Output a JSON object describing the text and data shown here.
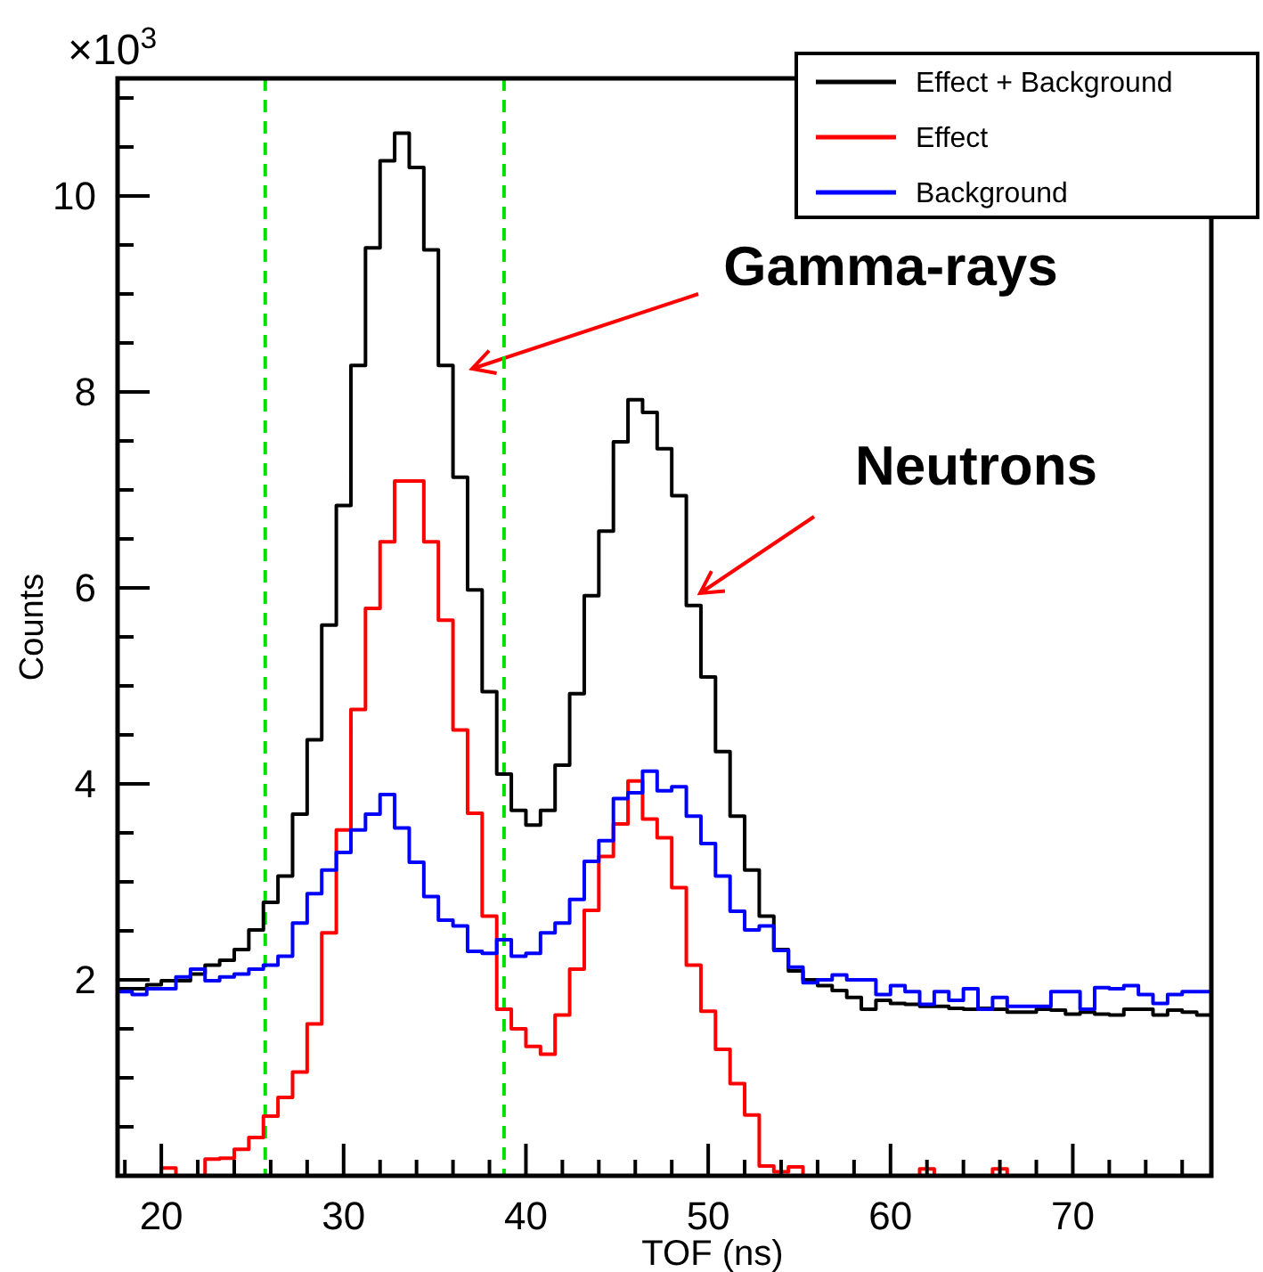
{
  "chart_data": {
    "type": "histogram",
    "xlabel": "TOF (ns)",
    "ylabel": "Counts",
    "annotations": [
      "×10$^{3}$",
      "Gamma-rays",
      "Neutrons"
    ],
    "bins": [
      17.6,
      18.4,
      19.2,
      20,
      20.8,
      21.6,
      22.4,
      23.2,
      24,
      24.8,
      25.6,
      26.4,
      27.2,
      28,
      28.8,
      29.6,
      30.4,
      31.2,
      32,
      32.8,
      33.6,
      34.4,
      35.2,
      36,
      36.8,
      37.6,
      38.4,
      39.2,
      40,
      40.8,
      41.6,
      42.4,
      43.2,
      44,
      44.8,
      45.6,
      46.4,
      47.2,
      48,
      48.8,
      49.6,
      50.4,
      51.2,
      52,
      52.8,
      53.6,
      54.4,
      55.2,
      56,
      56.8,
      57.6,
      58.4,
      59.2,
      60,
      60.8,
      61.6,
      62.4,
      63.2,
      64,
      64.8,
      65.6,
      66.4,
      67.2,
      68,
      68.8,
      69.6,
      70.4,
      71.2,
      72,
      72.8,
      73.6,
      74.4,
      75.2,
      76,
      76.8,
      77.6
    ],
    "series": [
      {
        "name": "Effect + Background",
        "color": "#000000",
        "values": [
          1.91,
          1.91,
          1.95,
          1.99,
          1.99,
          2.06,
          2.15,
          2.2,
          2.31,
          2.51,
          2.79,
          3.06,
          3.69,
          4.45,
          5.62,
          6.84,
          8.27,
          9.47,
          10.36,
          10.64,
          10.29,
          9.45,
          8.27,
          7.13,
          5.98,
          4.94,
          4.1,
          3.73,
          3.58,
          3.73,
          4.19,
          4.92,
          5.92,
          6.58,
          7.49,
          7.92,
          7.79,
          7.42,
          6.94,
          5.82,
          5.09,
          4.33,
          3.67,
          3.12,
          2.65,
          2.31,
          2.09,
          2.0,
          1.94,
          1.89,
          1.82,
          1.7,
          1.79,
          1.76,
          1.75,
          1.73,
          1.73,
          1.71,
          1.7,
          1.71,
          1.7,
          1.67,
          1.67,
          1.7,
          1.69,
          1.65,
          1.67,
          1.65,
          1.64,
          1.7,
          1.7,
          1.64,
          1.69,
          1.67,
          1.64
        ]
      },
      {
        "name": "Effect",
        "color": "#ff0000",
        "values": [
          0,
          0,
          0,
          0.08,
          0,
          0,
          0.17,
          0.18,
          0.27,
          0.39,
          0.61,
          0.8,
          1.06,
          1.55,
          2.48,
          3.53,
          4.76,
          5.79,
          6.47,
          7.09,
          7.09,
          6.47,
          5.67,
          4.55,
          3.7,
          2.65,
          1.7,
          1.5,
          1.32,
          1.24,
          1.64,
          2.11,
          2.71,
          3.26,
          3.59,
          4.03,
          3.64,
          3.45,
          2.94,
          2.15,
          1.68,
          1.29,
          0.94,
          0.62,
          0.1,
          0.04,
          0.09,
          0,
          0,
          0,
          0,
          0,
          0,
          0,
          0,
          0.07,
          0,
          0,
          0,
          0,
          0.07,
          0,
          0,
          0,
          0,
          0,
          0,
          0,
          0,
          0,
          0,
          0,
          0,
          0,
          0
        ]
      },
      {
        "name": "Background",
        "color": "#0000ff",
        "values": [
          1.88,
          1.85,
          1.91,
          1.91,
          2.03,
          2.11,
          1.99,
          2.03,
          2.06,
          2.11,
          2.15,
          2.24,
          2.58,
          2.88,
          3.12,
          3.3,
          3.53,
          3.69,
          3.89,
          3.55,
          3.2,
          2.85,
          2.61,
          2.55,
          2.29,
          2.27,
          2.41,
          2.24,
          2.27,
          2.48,
          2.58,
          2.82,
          3.21,
          3.42,
          3.85,
          3.91,
          4.13,
          3.93,
          3.97,
          3.67,
          3.39,
          3.06,
          2.7,
          2.51,
          2.55,
          2.3,
          2.13,
          1.97,
          2.0,
          2.05,
          2.0,
          2.0,
          1.85,
          1.94,
          1.88,
          1.75,
          1.88,
          1.79,
          1.91,
          1.7,
          1.82,
          1.73,
          1.73,
          1.73,
          1.88,
          1.88,
          1.7,
          1.92,
          1.91,
          1.94,
          1.85,
          1.76,
          1.85,
          1.88,
          1.88
        ]
      }
    ],
    "xlim": [
      17.6,
      77.6
    ],
    "xticks": [
      {
        "value": 18,
        "label": null
      },
      20,
      {
        "value": 22,
        "label": null
      },
      {
        "value": 24,
        "label": null
      },
      {
        "value": 26,
        "label": null
      },
      {
        "value": 28,
        "label": null
      },
      30,
      {
        "value": 32,
        "label": null
      },
      {
        "value": 34,
        "label": null
      },
      {
        "value": 36,
        "label": null
      },
      {
        "value": 38,
        "label": null
      },
      40,
      {
        "value": 42,
        "label": null
      },
      {
        "value": 44,
        "label": null
      },
      {
        "value": 46,
        "label": null
      },
      {
        "value": 48,
        "label": null
      },
      50,
      {
        "value": 52,
        "label": null
      },
      {
        "value": 54,
        "label": null
      },
      {
        "value": 56,
        "label": null
      },
      {
        "value": 58,
        "label": null
      },
      60,
      {
        "value": 62,
        "label": null
      },
      {
        "value": 64,
        "label": null
      },
      {
        "value": 66,
        "label": null
      },
      {
        "value": 68,
        "label": null
      },
      70,
      {
        "value": 72,
        "label": null
      },
      {
        "value": 74,
        "label": null
      },
      {
        "value": 76,
        "label": null
      }
    ],
    "ylim": [
      0,
      11.2
    ],
    "yticks": [
      {
        "value": 0.5,
        "label": null
      },
      {
        "value": 1,
        "label": null
      },
      {
        "value": 1.5,
        "label": null
      },
      2,
      {
        "value": 2.5,
        "label": null
      },
      {
        "value": 3,
        "label": null
      },
      {
        "value": 3.5,
        "label": null
      },
      4,
      {
        "value": 4.5,
        "label": null
      },
      {
        "value": 5,
        "label": null
      },
      {
        "value": 5.5,
        "label": null
      },
      6,
      {
        "value": 6.5,
        "label": null
      },
      {
        "value": 7,
        "label": null
      },
      {
        "value": 7.5,
        "label": null
      },
      8,
      {
        "value": 8.5,
        "label": null
      },
      {
        "value": 9,
        "label": null
      },
      {
        "value": 9.5,
        "label": null
      },
      10,
      {
        "value": 10.5,
        "label": null
      },
      {
        "value": 11,
        "label": null
      }
    ],
    "ref_lines": [
      {
        "axis": "x",
        "value": 25.7,
        "color": "#00e000",
        "line_style": "dashed"
      },
      {
        "axis": "x",
        "value": 38.8,
        "color": "#00e000",
        "line_style": "dashed"
      }
    ],
    "legend": "top right",
    "grid": false
  }
}
